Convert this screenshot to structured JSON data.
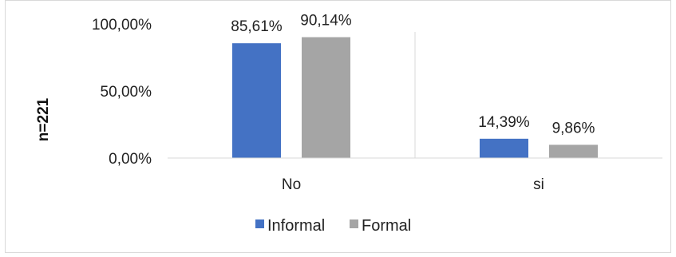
{
  "chart_data": {
    "type": "bar",
    "categories": [
      "No",
      "si"
    ],
    "series": [
      {
        "name": "Informal",
        "values": [
          85.61,
          14.39
        ],
        "color": "#4472c4",
        "labels": [
          "85,61%",
          "14,39%"
        ]
      },
      {
        "name": "Formal",
        "values": [
          90.14,
          9.86
        ],
        "color": "#a5a5a5",
        "labels": [
          "90,14%",
          "9,86%"
        ]
      }
    ],
    "yticks": [
      {
        "value": 0,
        "label": "0,00%"
      },
      {
        "value": 50,
        "label": "50,00%"
      },
      {
        "value": 100,
        "label": "100,00%"
      }
    ],
    "ylabel": "n=221",
    "xlabel": "",
    "title": "",
    "ylim": [
      0,
      100
    ],
    "grid": "vertical category separators",
    "legend_position": "bottom"
  }
}
